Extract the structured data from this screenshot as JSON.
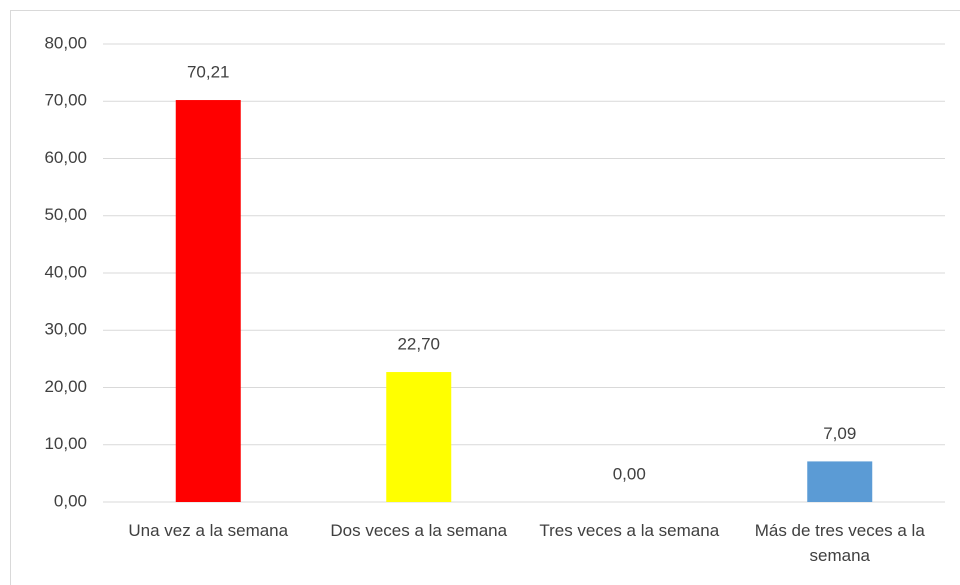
{
  "chart_data": {
    "type": "bar",
    "categories": [
      "Una vez a la semana",
      "Dos veces a la semana",
      "Tres veces a la semana",
      "Más de tres veces a la semana"
    ],
    "values": [
      70.21,
      22.7,
      0.0,
      7.09
    ],
    "value_labels": [
      "70,21",
      "22,70",
      "0,00",
      "7,09"
    ],
    "colors": [
      "#ff0000",
      "#ffff00",
      "#a5a5a5",
      "#5b9bd5"
    ],
    "ylim": [
      0,
      80
    ],
    "yticks": [
      {
        "value": 0,
        "label": "0,00"
      },
      {
        "value": 10,
        "label": "10,00"
      },
      {
        "value": 20,
        "label": "20,00"
      },
      {
        "value": 30,
        "label": "30,00"
      },
      {
        "value": 40,
        "label": "40,00"
      },
      {
        "value": 50,
        "label": "50,00"
      },
      {
        "value": 60,
        "label": "60,00"
      },
      {
        "value": 70,
        "label": "70,00"
      },
      {
        "value": 80,
        "label": "80,00"
      }
    ],
    "grid": true
  }
}
